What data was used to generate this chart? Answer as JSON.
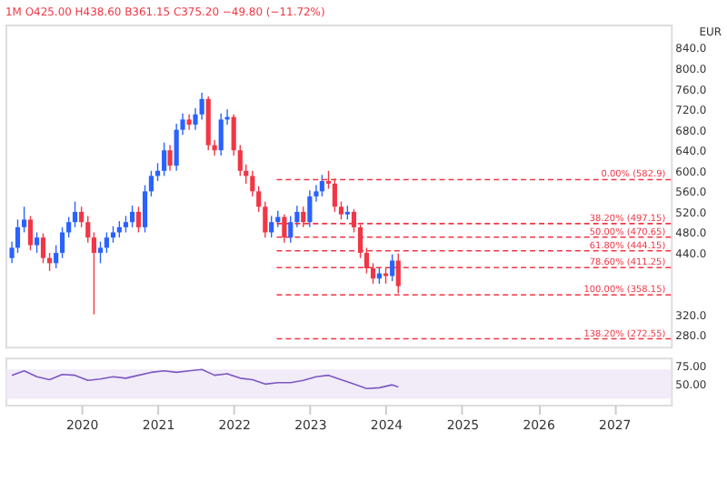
{
  "chart_data": [
    {
      "type": "candlestick",
      "title": "1M  O425.00 H438.60 B361.15 C375.20 −49.80 (−11.72%)",
      "annotations": [
        "EUR"
      ],
      "x": [
        "2019-02",
        "2019-03",
        "2019-04",
        "2019-05",
        "2019-06",
        "2019-07",
        "2019-08",
        "2019-09",
        "2019-10",
        "2019-11",
        "2019-12",
        "2020-01",
        "2020-02",
        "2020-03",
        "2020-04",
        "2020-05",
        "2020-06",
        "2020-07",
        "2020-08",
        "2020-09",
        "2020-10",
        "2020-11",
        "2020-12",
        "2021-01",
        "2021-02",
        "2021-03",
        "2021-04",
        "2021-05",
        "2021-06",
        "2021-07",
        "2021-08",
        "2021-09",
        "2021-10",
        "2021-11",
        "2021-12",
        "2022-01",
        "2022-02",
        "2022-03",
        "2022-04",
        "2022-05",
        "2022-06",
        "2022-07",
        "2022-08",
        "2022-09",
        "2022-10",
        "2022-11",
        "2022-12",
        "2023-01",
        "2023-02",
        "2023-03",
        "2023-04",
        "2023-05",
        "2023-06",
        "2023-07",
        "2023-08",
        "2023-09",
        "2023-10",
        "2023-11",
        "2023-12",
        "2024-01",
        "2024-02",
        "2024-03"
      ],
      "ohlc": [
        [
          430,
          462,
          420,
          450
        ],
        [
          450,
          505,
          440,
          490
        ],
        [
          490,
          530,
          480,
          505
        ],
        [
          505,
          512,
          445,
          455
        ],
        [
          455,
          480,
          440,
          470
        ],
        [
          470,
          478,
          420,
          430
        ],
        [
          430,
          440,
          405,
          420
        ],
        [
          420,
          455,
          410,
          440
        ],
        [
          440,
          490,
          430,
          480
        ],
        [
          480,
          510,
          470,
          500
        ],
        [
          500,
          540,
          490,
          520
        ],
        [
          520,
          530,
          490,
          500
        ],
        [
          500,
          512,
          460,
          470
        ],
        [
          470,
          480,
          320,
          440
        ],
        [
          440,
          462,
          420,
          450
        ],
        [
          450,
          480,
          440,
          470
        ],
        [
          470,
          492,
          460,
          480
        ],
        [
          480,
          502,
          470,
          490
        ],
        [
          490,
          512,
          480,
          500
        ],
        [
          500,
          532,
          490,
          520
        ],
        [
          520,
          530,
          480,
          490
        ],
        [
          490,
          572,
          480,
          560
        ],
        [
          560,
          600,
          550,
          590
        ],
        [
          590,
          615,
          580,
          600
        ],
        [
          600,
          655,
          590,
          640
        ],
        [
          640,
          650,
          600,
          610
        ],
        [
          610,
          692,
          600,
          680
        ],
        [
          680,
          712,
          670,
          700
        ],
        [
          700,
          710,
          680,
          690
        ],
        [
          690,
          722,
          680,
          710
        ],
        [
          710,
          752,
          700,
          740
        ],
        [
          740,
          745,
          640,
          650
        ],
        [
          650,
          660,
          630,
          640
        ],
        [
          640,
          712,
          630,
          700
        ],
        [
          700,
          720,
          690,
          705
        ],
        [
          705,
          710,
          630,
          640
        ],
        [
          640,
          650,
          590,
          600
        ],
        [
          600,
          612,
          575,
          590
        ],
        [
          590,
          600,
          550,
          560
        ],
        [
          560,
          570,
          520,
          530
        ],
        [
          530,
          540,
          470,
          480
        ],
        [
          480,
          512,
          470,
          500
        ],
        [
          500,
          522,
          490,
          510
        ],
        [
          510,
          515,
          460,
          470
        ],
        [
          470,
          512,
          460,
          500
        ],
        [
          500,
          532,
          490,
          520
        ],
        [
          520,
          530,
          490,
          500
        ],
        [
          500,
          562,
          490,
          550
        ],
        [
          550,
          572,
          540,
          560
        ],
        [
          560,
          592,
          550,
          580
        ],
        [
          580,
          600,
          565,
          575
        ],
        [
          575,
          585,
          520,
          530
        ],
        [
          530,
          540,
          505,
          515
        ],
        [
          515,
          532,
          505,
          520
        ],
        [
          520,
          525,
          480,
          490
        ],
        [
          490,
          495,
          430,
          440
        ],
        [
          440,
          450,
          400,
          410
        ],
        [
          410,
          420,
          380,
          390
        ],
        [
          390,
          412,
          380,
          400
        ],
        [
          400,
          410,
          380,
          395
        ],
        [
          395,
          437,
          385,
          425
        ],
        [
          425,
          438.6,
          361.15,
          375.2
        ]
      ],
      "colors": [
        "#2962ff",
        "#2962ff",
        "#2962ff",
        "#f23645",
        "#2962ff",
        "#f23645",
        "#f23645",
        "#2962ff",
        "#2962ff",
        "#2962ff",
        "#2962ff",
        "#f23645",
        "#f23645",
        "#f23645",
        "#2962ff",
        "#2962ff",
        "#2962ff",
        "#2962ff",
        "#2962ff",
        "#2962ff",
        "#f23645",
        "#2962ff",
        "#2962ff",
        "#2962ff",
        "#2962ff",
        "#f23645",
        "#2962ff",
        "#2962ff",
        "#f23645",
        "#2962ff",
        "#2962ff",
        "#f23645",
        "#f23645",
        "#2962ff",
        "#2962ff",
        "#f23645",
        "#f23645",
        "#f23645",
        "#f23645",
        "#f23645",
        "#f23645",
        "#2962ff",
        "#2962ff",
        "#f23645",
        "#2962ff",
        "#2962ff",
        "#f23645",
        "#2962ff",
        "#2962ff",
        "#2962ff",
        "#f23645",
        "#f23645",
        "#f23645",
        "#2962ff",
        "#f23645",
        "#f23645",
        "#f23645",
        "#f23645",
        "#2962ff",
        "#f23645",
        "#2962ff",
        "#f23645"
      ],
      "xlim": [
        "2019-01",
        "2027-10"
      ],
      "ylim": [
        257,
        885
      ],
      "yticks": [
        {
          "value": 280,
          "label": "280.0"
        },
        {
          "value": 320,
          "label": "320.0"
        },
        {
          "value": 440,
          "label": "440.0"
        },
        {
          "value": 480,
          "label": "480.0"
        },
        {
          "value": 520,
          "label": "520.0"
        },
        {
          "value": 560,
          "label": "560.0"
        },
        {
          "value": 600,
          "label": "600.0"
        },
        {
          "value": 640,
          "label": "640.0"
        },
        {
          "value": 680,
          "label": "680.0"
        },
        {
          "value": 720,
          "label": "720.0"
        },
        {
          "value": 760,
          "label": "760.0"
        },
        {
          "value": 800,
          "label": "800.0"
        },
        {
          "value": 840,
          "label": "840.0"
        }
      ],
      "ref_lines": [
        {
          "axis": "y",
          "value": 582.9,
          "label": "0.00% (582.9)",
          "color": "#f23645",
          "line_style": "dashed"
        },
        {
          "axis": "y",
          "value": 497.15,
          "label": "38.20% (497.15)",
          "color": "#f23645",
          "line_style": "dashed"
        },
        {
          "axis": "y",
          "value": 470.65,
          "label": "50.00% (470.65)",
          "color": "#f23645",
          "line_style": "dashed"
        },
        {
          "axis": "y",
          "value": 444.15,
          "label": "61.80% (444.15)",
          "color": "#f23645",
          "line_style": "dashed"
        },
        {
          "axis": "y",
          "value": 411.25,
          "label": "78.60% (411.25)",
          "color": "#f23645",
          "line_style": "dashed"
        },
        {
          "axis": "y",
          "value": 358.15,
          "label": "100.00% (358.15)",
          "color": "#f23645",
          "line_style": "dashed"
        },
        {
          "axis": "y",
          "value": 272.55,
          "label": "138.20% (272.55)",
          "color": "#f23645",
          "line_style": "dashed"
        }
      ],
      "grid": false,
      "tick_labels": "y"
    },
    {
      "type": "line",
      "x": [
        "2019-02",
        "2019-04",
        "2019-06",
        "2019-08",
        "2019-10",
        "2019-12",
        "2020-02",
        "2020-04",
        "2020-06",
        "2020-08",
        "2020-10",
        "2020-12",
        "2021-02",
        "2021-04",
        "2021-06",
        "2021-08",
        "2021-10",
        "2021-12",
        "2022-02",
        "2022-04",
        "2022-06",
        "2022-08",
        "2022-10",
        "2022-12",
        "2023-02",
        "2023-04",
        "2023-06",
        "2023-08",
        "2023-10",
        "2023-12",
        "2024-02",
        "2024-03"
      ],
      "series": [
        {
          "color": "#7e57c2",
          "values": [
            62,
            68,
            60,
            56,
            63,
            62,
            55,
            57,
            60,
            58,
            62,
            66,
            68,
            66,
            68,
            70,
            62,
            64,
            58,
            56,
            50,
            52,
            52,
            55,
            60,
            62,
            56,
            50,
            44,
            45,
            49,
            46
          ]
        }
      ],
      "xlim": [
        "2019-01",
        "2027-10"
      ],
      "ylim": [
        22,
        86
      ],
      "xticks": [
        "2020",
        "2021",
        "2022",
        "2023",
        "2024",
        "2025",
        "2026",
        "2027"
      ],
      "yticks": [
        {
          "value": 75,
          "label": "75.00"
        },
        {
          "value": 50,
          "label": "50.00"
        }
      ],
      "bands": [
        {
          "axis": "y",
          "from": 30,
          "to": 70,
          "color": "#ede7f6"
        }
      ],
      "grid": false
    }
  ]
}
